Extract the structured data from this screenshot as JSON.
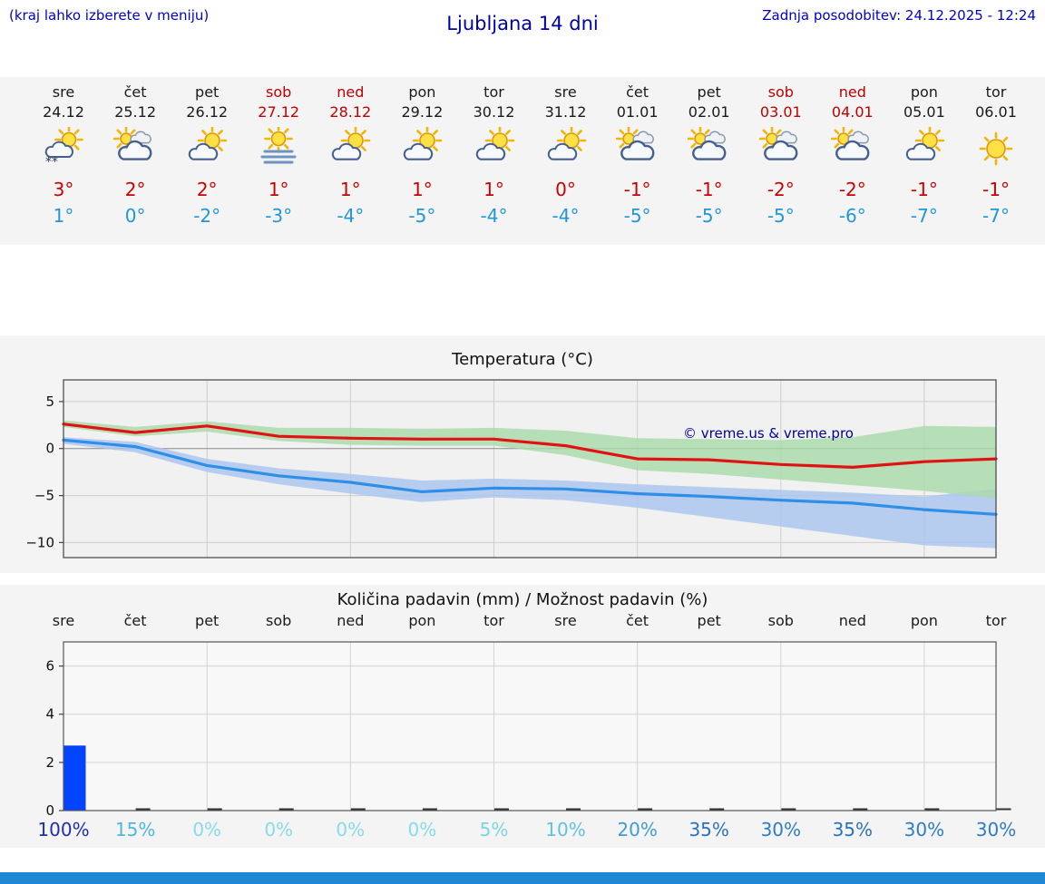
{
  "header": {
    "menu_note": "(kraj lahko izberete v meniju)",
    "title": "Ljubljana 14 dni",
    "last_update": "Zadnja posodobitev: 24.12.2025 - 12:24"
  },
  "forecast_days": [
    {
      "name": "sre",
      "date": "24.12",
      "weekend": false,
      "icon": "partly-snow",
      "high": "3°",
      "low": "1°"
    },
    {
      "name": "čet",
      "date": "25.12",
      "weekend": false,
      "icon": "mostly-cloudy",
      "high": "2°",
      "low": "0°"
    },
    {
      "name": "pet",
      "date": "26.12",
      "weekend": false,
      "icon": "partly",
      "high": "2°",
      "low": "-2°"
    },
    {
      "name": "sob",
      "date": "27.12",
      "weekend": true,
      "icon": "fog",
      "high": "1°",
      "low": "-3°"
    },
    {
      "name": "ned",
      "date": "28.12",
      "weekend": true,
      "icon": "partly",
      "high": "1°",
      "low": "-4°"
    },
    {
      "name": "pon",
      "date": "29.12",
      "weekend": false,
      "icon": "partly",
      "high": "1°",
      "low": "-5°"
    },
    {
      "name": "tor",
      "date": "30.12",
      "weekend": false,
      "icon": "partly",
      "high": "1°",
      "low": "-4°"
    },
    {
      "name": "sre",
      "date": "31.12",
      "weekend": false,
      "icon": "partly",
      "high": "0°",
      "low": "-4°"
    },
    {
      "name": "čet",
      "date": "01.01",
      "weekend": false,
      "icon": "mostly-cloudy",
      "high": "-1°",
      "low": "-5°"
    },
    {
      "name": "pet",
      "date": "02.01",
      "weekend": false,
      "icon": "mostly-cloudy",
      "high": "-1°",
      "low": "-5°"
    },
    {
      "name": "sob",
      "date": "03.01",
      "weekend": true,
      "icon": "mostly-cloudy",
      "high": "-2°",
      "low": "-5°"
    },
    {
      "name": "ned",
      "date": "04.01",
      "weekend": true,
      "icon": "mostly-cloudy",
      "high": "-2°",
      "low": "-6°"
    },
    {
      "name": "pon",
      "date": "05.01",
      "weekend": false,
      "icon": "partly",
      "high": "-1°",
      "low": "-7°"
    },
    {
      "name": "tor",
      "date": "06.01",
      "weekend": false,
      "icon": "sunny",
      "high": "-1°",
      "low": "-7°"
    }
  ],
  "chart_data": [
    {
      "type": "line",
      "title": "Temperatura (°C)",
      "categories": [
        "24.12",
        "25.12",
        "26.12",
        "27.12",
        "28.12",
        "29.12",
        "30.12",
        "31.12",
        "01.01",
        "02.01",
        "03.01",
        "04.01",
        "05.01",
        "06.01"
      ],
      "ylabel": "°C",
      "yticks": [
        5,
        0,
        -5,
        -10
      ],
      "ylim": [
        -11.6,
        7.3
      ],
      "grid": true,
      "legend": "none",
      "annotation": "© vreme.us & vreme.pro",
      "annotation_color": "#00009a",
      "series": [
        {
          "name": "max-temperature",
          "color": "#e11212",
          "values": [
            2.6,
            1.7,
            2.4,
            1.3,
            1.1,
            1.0,
            1.0,
            0.3,
            -1.1,
            -1.2,
            -1.7,
            -2.0,
            -1.4,
            -1.1
          ]
        },
        {
          "name": "min-temperature",
          "color": "#2f8fe8",
          "values": [
            0.9,
            0.2,
            -1.8,
            -2.9,
            -3.6,
            -4.6,
            -4.2,
            -4.3,
            -4.8,
            -5.1,
            -5.5,
            -5.8,
            -6.5,
            -7.0
          ]
        }
      ],
      "bands": [
        {
          "name": "min-temperature-range",
          "color": "#a9c4ef",
          "upper": [
            1.2,
            0.7,
            -1.1,
            -2.1,
            -2.7,
            -3.4,
            -3.2,
            -3.4,
            -3.8,
            -4.1,
            -4.4,
            -4.7,
            -5.1,
            -4.3
          ],
          "lower": [
            0.5,
            -0.4,
            -2.5,
            -3.8,
            -4.8,
            -5.7,
            -5.2,
            -5.5,
            -6.3,
            -7.3,
            -8.3,
            -9.3,
            -10.3,
            -10.6
          ]
        },
        {
          "name": "max-temperature-range",
          "color": "#a9dba9",
          "upper": [
            3.0,
            2.3,
            2.9,
            2.2,
            2.2,
            2.1,
            2.2,
            1.9,
            1.1,
            1.0,
            0.9,
            1.2,
            2.4,
            2.3
          ],
          "lower": [
            2.3,
            1.3,
            1.8,
            0.8,
            0.4,
            0.3,
            0.3,
            -0.7,
            -2.3,
            -2.7,
            -3.3,
            -3.9,
            -4.5,
            -5.3
          ]
        }
      ]
    },
    {
      "type": "bar",
      "title": "Količina padavin (mm) / Možnost padavin (%)",
      "categories": [
        "sre",
        "čet",
        "pet",
        "sob",
        "ned",
        "pon",
        "tor",
        "sre",
        "čet",
        "pet",
        "sob",
        "ned",
        "pon",
        "tor"
      ],
      "values_mm": [
        2.7,
        0,
        0,
        0,
        0,
        0,
        0,
        0,
        0,
        0,
        0,
        0,
        0,
        0
      ],
      "bar_color": "#0345ff",
      "yticks": [
        0,
        2,
        4,
        6
      ],
      "ylim": [
        0,
        7
      ],
      "grid": true,
      "probability_labels": [
        {
          "text": "100%",
          "color": "#1f2fae"
        },
        {
          "text": "15%",
          "color": "#4fb6de"
        },
        {
          "text": "0%",
          "color": "#86dce8"
        },
        {
          "text": "0%",
          "color": "#86dce8"
        },
        {
          "text": "0%",
          "color": "#86dce8"
        },
        {
          "text": "0%",
          "color": "#86dce8"
        },
        {
          "text": "5%",
          "color": "#79d6e4"
        },
        {
          "text": "10%",
          "color": "#5fc2de"
        },
        {
          "text": "20%",
          "color": "#3f9cd2"
        },
        {
          "text": "35%",
          "color": "#2a72c0"
        },
        {
          "text": "30%",
          "color": "#2f7cc4"
        },
        {
          "text": "35%",
          "color": "#2a72c0"
        },
        {
          "text": "30%",
          "color": "#2f7cc4"
        },
        {
          "text": "30%",
          "color": "#2f7cc4"
        }
      ]
    }
  ],
  "footer": {
    "bar_color": "#1e88d4"
  }
}
